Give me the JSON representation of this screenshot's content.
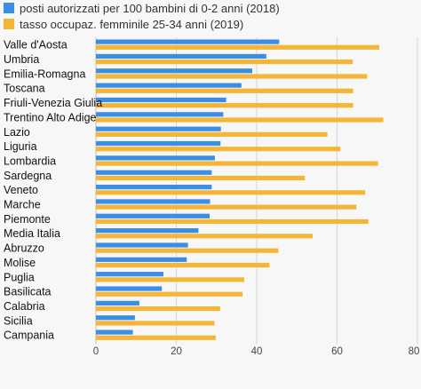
{
  "chart_data": {
    "type": "bar",
    "orientation": "horizontal",
    "categories": [
      "Valle d'Aosta",
      "Umbria",
      "Emilia-Romagna",
      "Toscana",
      "Friuli-Venezia Giulia",
      "Trentino Alto Adige",
      "Lazio",
      "Liguria",
      "Lombardia",
      "Sardegna",
      "Veneto",
      "Marche",
      "Piemonte",
      "Media Italia",
      "Abruzzo",
      "Molise",
      "Puglia",
      "Basilicata",
      "Calabria",
      "Sicilia",
      "Campania"
    ],
    "series": [
      {
        "name": "posti autorizzati per 100 bambini di 0-2 anni (2018)",
        "color": "#3a8ee6",
        "values": [
          45.6,
          42.4,
          38.9,
          36.2,
          32.4,
          31.7,
          31.1,
          31.0,
          29.6,
          28.8,
          28.8,
          28.4,
          28.3,
          25.5,
          22.9,
          22.6,
          16.8,
          16.4,
          10.8,
          9.7,
          9.2
        ]
      },
      {
        "name": "tasso occupaz. femminile 25-34 anni (2019)",
        "color": "#f5b638",
        "values": [
          70.5,
          63.9,
          67.5,
          64.0,
          64.0,
          71.5,
          57.6,
          60.8,
          70.2,
          52.0,
          67.0,
          64.8,
          67.8,
          53.9,
          45.4,
          43.2,
          36.9,
          36.5,
          30.9,
          29.5,
          29.8
        ]
      }
    ],
    "xticks": [
      "0",
      "20",
      "40",
      "60",
      "80"
    ],
    "xlim": [
      0,
      80
    ],
    "grid": true,
    "legend_position": "top-left"
  }
}
